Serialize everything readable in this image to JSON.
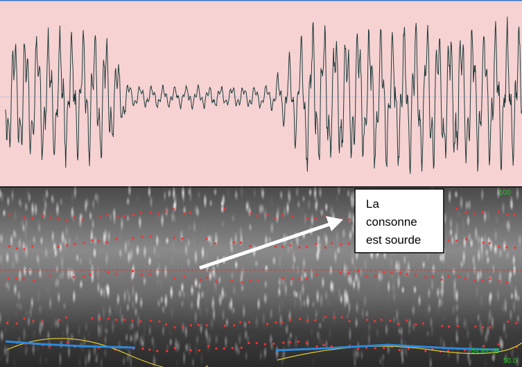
{
  "annotation": {
    "lines": [
      "La",
      "consonne",
      "est sourde"
    ]
  },
  "spectrogram_labels": {
    "top_right": "100",
    "bottom_right_intensity": "54.89 dB",
    "bottom_right": "50.0"
  }
}
